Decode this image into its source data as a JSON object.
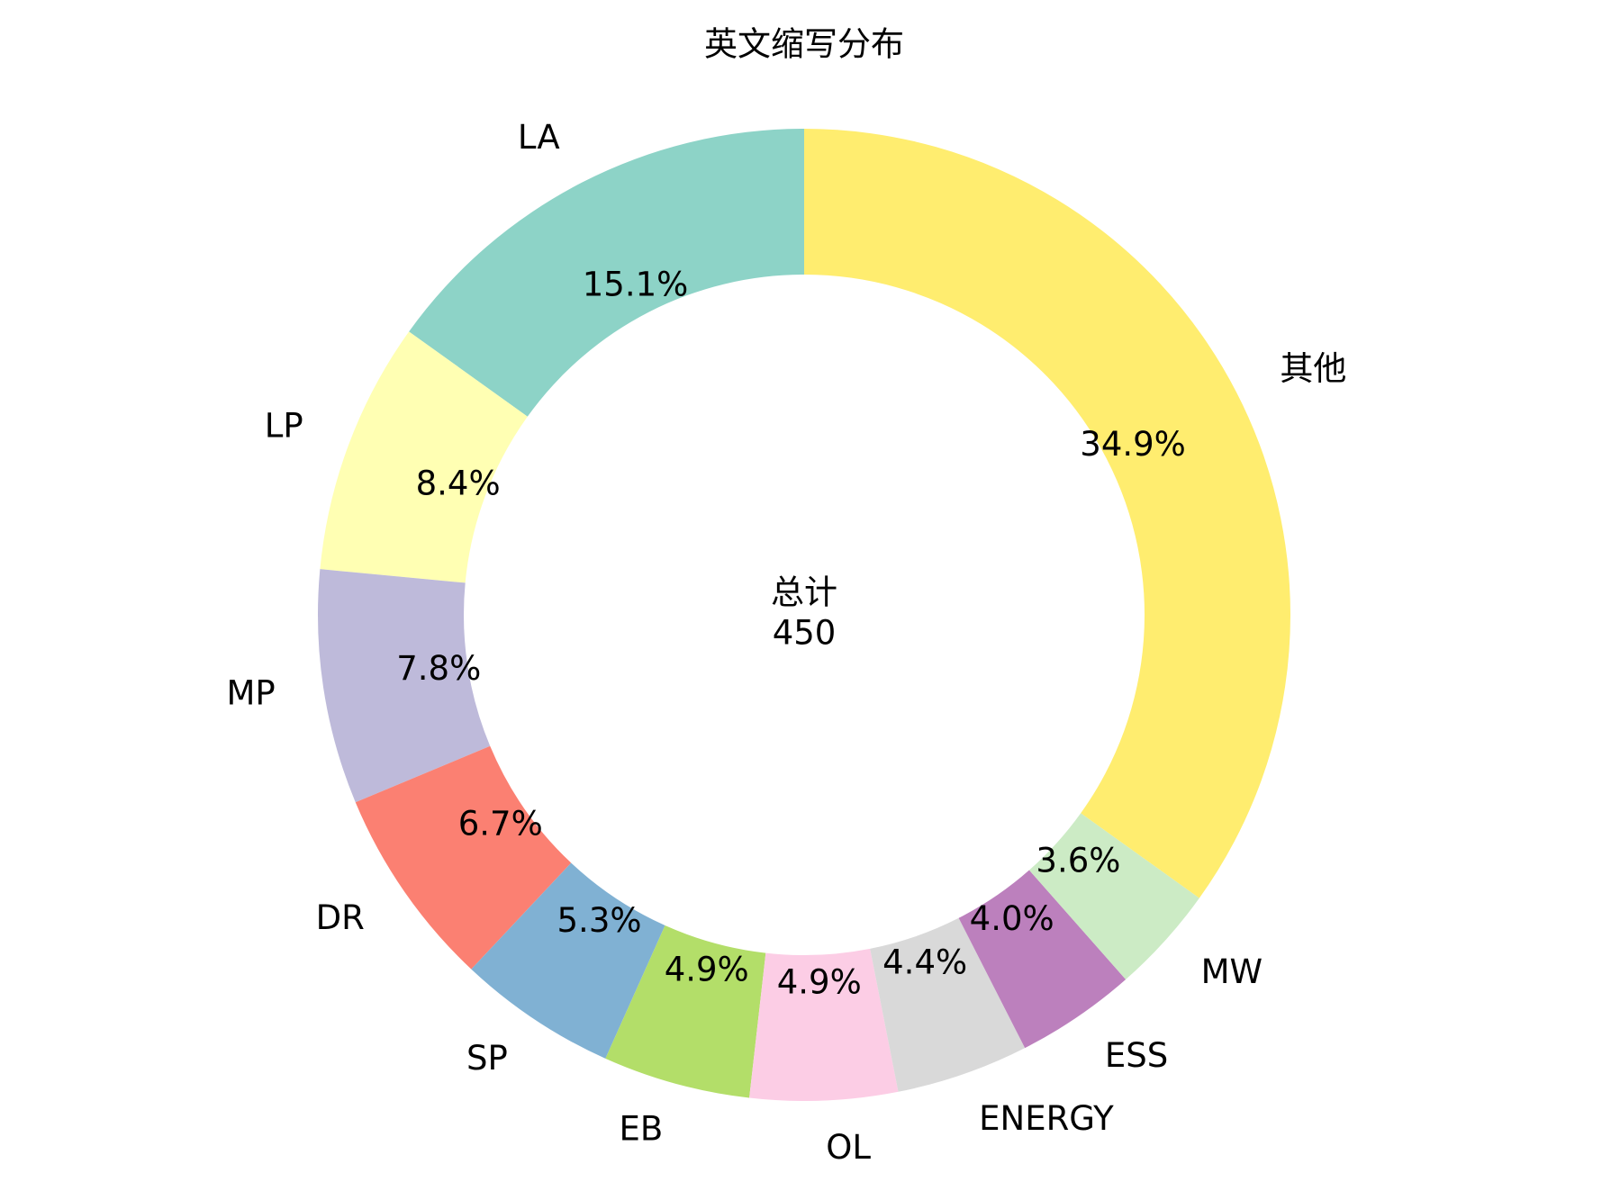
{
  "chart_data": {
    "type": "donut",
    "title": "英文缩写分布",
    "categories": [
      "LA",
      "LP",
      "MP",
      "DR",
      "SP",
      "EB",
      "OL",
      "ENERGY",
      "ESS",
      "MW",
      "其他"
    ],
    "values": [
      15.1,
      8.4,
      7.8,
      6.7,
      5.3,
      4.9,
      4.9,
      4.4,
      4.0,
      3.6,
      34.9
    ],
    "value_labels": [
      "15.1%",
      "8.4%",
      "7.8%",
      "6.7%",
      "5.3%",
      "4.9%",
      "4.9%",
      "4.4%",
      "4.0%",
      "3.6%",
      "34.9%"
    ],
    "colors": [
      "#8dd3c7",
      "#ffffb3",
      "#bebada",
      "#fb8072",
      "#80b1d3",
      "#b3de69",
      "#fccde5",
      "#d9d9d9",
      "#bc80bd",
      "#ccebc5",
      "#ffed6f"
    ],
    "center_label": "总计",
    "total": 450
  }
}
